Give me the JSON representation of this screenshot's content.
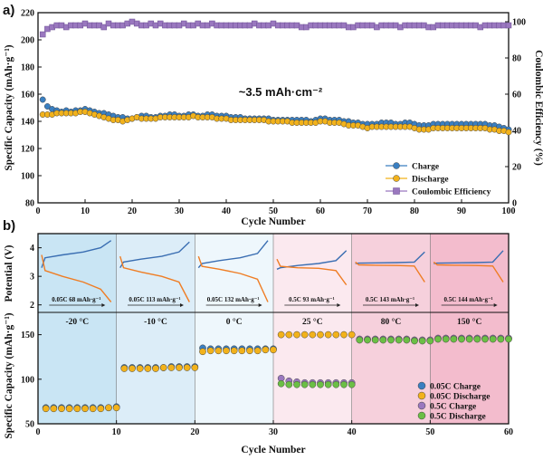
{
  "chart_data": [
    {
      "panel": "a)",
      "type": "scatter",
      "xlabel": "Cycle Number",
      "ylabel": "Specific Capacity (mAh·g⁻¹)",
      "y2label": "Coulombic Efficiency (%)",
      "annotation": "~3.5 mAh·cm⁻²",
      "xlim": [
        0,
        100
      ],
      "ylim": [
        80,
        220
      ],
      "y2lim": [
        0,
        105
      ],
      "xticks": [
        "0",
        "10",
        "20",
        "30",
        "40",
        "50",
        "60",
        "70",
        "80",
        "90",
        "100"
      ],
      "yticks": [
        "80",
        "100",
        "120",
        "140",
        "160",
        "180",
        "200",
        "220"
      ],
      "y2ticks": [
        "0",
        "20",
        "40",
        "60",
        "80",
        "100"
      ],
      "legend_position": "bottom-right",
      "grid": false,
      "series": [
        {
          "name": "Charge",
          "color": "#3a7fc1",
          "marker": "circle",
          "axis": "left",
          "x": [
            1,
            2,
            3,
            4,
            5,
            6,
            7,
            8,
            9,
            10,
            11,
            12,
            13,
            14,
            15,
            16,
            17,
            18,
            19,
            20,
            21,
            22,
            23,
            24,
            25,
            26,
            27,
            28,
            29,
            30,
            31,
            32,
            33,
            34,
            35,
            36,
            37,
            38,
            39,
            40,
            41,
            42,
            43,
            44,
            45,
            46,
            47,
            48,
            49,
            50,
            51,
            52,
            53,
            54,
            55,
            56,
            57,
            58,
            59,
            60,
            61,
            62,
            63,
            64,
            65,
            66,
            67,
            68,
            69,
            70,
            71,
            72,
            73,
            74,
            75,
            76,
            77,
            78,
            79,
            80,
            81,
            82,
            83,
            84,
            85,
            86,
            87,
            88,
            89,
            90,
            91,
            92,
            93,
            94,
            95,
            96,
            97,
            98,
            99,
            100
          ],
          "values": [
            156,
            151,
            149,
            148,
            147,
            148,
            147,
            148,
            148,
            149,
            148,
            147,
            146,
            146,
            145,
            144,
            143,
            143,
            142,
            142,
            143,
            144,
            144,
            143,
            143,
            144,
            144,
            145,
            145,
            144,
            144,
            145,
            145,
            144,
            144,
            145,
            145,
            144,
            144,
            144,
            143,
            143,
            143,
            142,
            142,
            142,
            142,
            142,
            142,
            141,
            141,
            141,
            141,
            141,
            141,
            141,
            141,
            140,
            141,
            142,
            142,
            141,
            141,
            141,
            140,
            140,
            139,
            139,
            138,
            138,
            138,
            138,
            139,
            139,
            139,
            138,
            138,
            139,
            139,
            138,
            137,
            137,
            137,
            138,
            138,
            138,
            138,
            138,
            138,
            138,
            138,
            138,
            138,
            138,
            138,
            137,
            137,
            136,
            135,
            134
          ]
        },
        {
          "name": "Discharge",
          "color": "#f2b21b",
          "marker": "circle",
          "axis": "left",
          "x": [
            1,
            2,
            3,
            4,
            5,
            6,
            7,
            8,
            9,
            10,
            11,
            12,
            13,
            14,
            15,
            16,
            17,
            18,
            19,
            20,
            21,
            22,
            23,
            24,
            25,
            26,
            27,
            28,
            29,
            30,
            31,
            32,
            33,
            34,
            35,
            36,
            37,
            38,
            39,
            40,
            41,
            42,
            43,
            44,
            45,
            46,
            47,
            48,
            49,
            50,
            51,
            52,
            53,
            54,
            55,
            56,
            57,
            58,
            59,
            60,
            61,
            62,
            63,
            64,
            65,
            66,
            67,
            68,
            69,
            70,
            71,
            72,
            73,
            74,
            75,
            76,
            77,
            78,
            79,
            80,
            81,
            82,
            83,
            84,
            85,
            86,
            87,
            88,
            89,
            90,
            91,
            92,
            93,
            94,
            95,
            96,
            97,
            98,
            99,
            100
          ],
          "values": [
            145,
            145,
            145,
            146,
            146,
            146,
            146,
            146,
            147,
            147,
            146,
            145,
            144,
            143,
            142,
            141,
            141,
            140,
            141,
            142,
            143,
            142,
            142,
            142,
            142,
            143,
            143,
            143,
            143,
            143,
            143,
            143,
            144,
            143,
            143,
            143,
            143,
            142,
            142,
            142,
            141,
            141,
            141,
            141,
            141,
            141,
            141,
            141,
            140,
            140,
            140,
            140,
            140,
            139,
            139,
            139,
            139,
            139,
            139,
            140,
            140,
            139,
            139,
            139,
            138,
            137,
            137,
            137,
            136,
            135,
            136,
            136,
            136,
            136,
            136,
            136,
            136,
            136,
            136,
            135,
            134,
            134,
            134,
            135,
            135,
            135,
            135,
            135,
            135,
            135,
            135,
            135,
            135,
            135,
            135,
            134,
            134,
            133,
            133,
            132
          ]
        },
        {
          "name": "Coulombic Efficiency",
          "color": "#9a78bf",
          "marker": "square",
          "axis": "right",
          "x": [
            1,
            2,
            3,
            4,
            5,
            6,
            7,
            8,
            9,
            10,
            11,
            12,
            13,
            14,
            15,
            16,
            17,
            18,
            19,
            20,
            21,
            22,
            23,
            24,
            25,
            26,
            27,
            28,
            29,
            30,
            31,
            32,
            33,
            34,
            35,
            36,
            37,
            38,
            39,
            40,
            41,
            42,
            43,
            44,
            45,
            46,
            47,
            48,
            49,
            50,
            51,
            52,
            53,
            54,
            55,
            56,
            57,
            58,
            59,
            60,
            61,
            62,
            63,
            64,
            65,
            66,
            67,
            68,
            69,
            70,
            71,
            72,
            73,
            74,
            75,
            76,
            77,
            78,
            79,
            80,
            81,
            82,
            83,
            84,
            85,
            86,
            87,
            88,
            89,
            90,
            91,
            92,
            93,
            94,
            95,
            96,
            97,
            98,
            99,
            100
          ],
          "values": [
            93,
            96,
            97,
            98,
            98,
            97,
            98,
            98,
            98,
            99,
            98,
            98,
            98,
            97,
            99,
            98,
            98,
            98,
            99,
            100,
            99,
            98,
            98,
            99,
            98,
            99,
            98,
            98,
            98,
            98,
            99,
            98,
            98,
            99,
            98,
            98,
            99,
            98,
            98,
            98,
            98,
            98,
            98,
            98,
            98,
            99,
            98,
            98,
            98,
            99,
            98,
            98,
            98,
            98,
            98,
            97,
            97,
            98,
            98,
            98,
            98,
            98,
            98,
            98,
            98,
            97,
            97,
            98,
            98,
            98,
            98,
            97,
            98,
            98,
            98,
            98,
            97,
            98,
            98,
            98,
            98,
            98,
            97,
            97,
            98,
            98,
            98,
            98,
            98,
            98,
            98,
            98,
            98,
            97,
            98,
            98,
            98,
            98,
            98,
            98
          ]
        }
      ]
    },
    {
      "panel": "b)",
      "type": "scatter",
      "xlabel": "Cycle Number",
      "ylabel": "Specific Capacity (mAh·g⁻¹)",
      "xlim": [
        0,
        60
      ],
      "ylim": [
        50,
        175
      ],
      "xticks": [
        "0",
        "10",
        "20",
        "30",
        "40",
        "50",
        "60"
      ],
      "yticks": [
        "50",
        "100",
        "150"
      ],
      "legend_position": "bottom-right",
      "grid": false,
      "temperatures": [
        "-20 °C",
        "-10 °C",
        "0 °C",
        "25 °C",
        "80 °C",
        "150 °C"
      ],
      "segment_colors": [
        "#c9e5f4",
        "#dcedf8",
        "#eef7fc",
        "#fbe9ef",
        "#f6d0dc",
        "#f3bccd"
      ],
      "series": [
        {
          "name": "0.05C Charge",
          "color": "#3a7fc1",
          "marker": "circle",
          "x": [
            1,
            2,
            3,
            4,
            5,
            6,
            7,
            8,
            9,
            10,
            11,
            12,
            13,
            14,
            15,
            16,
            17,
            18,
            19,
            20,
            21,
            22,
            23,
            24,
            25,
            26,
            27,
            28,
            29,
            30
          ],
          "values": [
            68,
            68,
            68,
            68,
            68,
            68,
            68,
            68,
            68,
            69,
            113,
            113,
            113,
            113,
            113,
            113,
            114,
            114,
            114,
            114,
            135,
            134,
            134,
            134,
            134,
            134,
            134,
            134,
            134,
            134
          ]
        },
        {
          "name": "0.05C Discharge",
          "color": "#f2b21b",
          "marker": "circle",
          "x": [
            1,
            2,
            3,
            4,
            5,
            6,
            7,
            8,
            9,
            10,
            11,
            12,
            13,
            14,
            15,
            16,
            17,
            18,
            19,
            20,
            21,
            22,
            23,
            24,
            25,
            26,
            27,
            28,
            29,
            30
          ],
          "values": [
            67,
            67,
            67,
            67,
            67,
            67,
            67,
            67,
            68,
            68,
            112,
            112,
            112,
            112,
            112,
            113,
            113,
            113,
            113,
            113,
            131,
            132,
            132,
            132,
            132,
            132,
            132,
            132,
            133,
            133
          ]
        },
        {
          "name": "0.5C Charge",
          "color": "#9a78bf",
          "marker": "circle",
          "x": [
            31,
            32,
            33,
            34,
            35,
            36,
            37,
            38,
            39,
            40,
            41,
            42,
            43,
            44,
            45,
            46,
            47,
            48,
            49,
            50,
            51,
            52,
            53,
            54,
            55,
            56,
            57,
            58,
            59,
            60
          ],
          "values": [
            101,
            98,
            97,
            96,
            96,
            96,
            96,
            96,
            96,
            96,
            145,
            145,
            145,
            145,
            145,
            145,
            145,
            144,
            144,
            144,
            146,
            146,
            146,
            146,
            146,
            146,
            146,
            146,
            146,
            146
          ]
        },
        {
          "name": "0.5C Discharge",
          "color": "#6bbf45",
          "marker": "circle",
          "x": [
            31,
            32,
            33,
            34,
            35,
            36,
            37,
            38,
            39,
            40,
            41,
            42,
            43,
            44,
            45,
            46,
            47,
            48,
            49,
            50,
            51,
            52,
            53,
            54,
            55,
            56,
            57,
            58,
            59,
            60
          ],
          "values": [
            95,
            94,
            94,
            94,
            94,
            94,
            94,
            94,
            94,
            94,
            144,
            144,
            144,
            144,
            144,
            144,
            144,
            143,
            143,
            143,
            145,
            145,
            145,
            145,
            145,
            145,
            145,
            145,
            145,
            145
          ]
        },
        {
          "name": "0.05C/0.5C Charge (upper, 0.5C at 25 °C)",
          "legend": false,
          "color": "#f2b21b",
          "marker": "circle",
          "x": [
            31,
            32,
            33,
            34,
            35,
            36,
            37,
            38,
            39,
            40
          ],
          "values": [
            150,
            150,
            150,
            150,
            150,
            150,
            150,
            150,
            150,
            150
          ]
        }
      ],
      "inset": {
        "ylabel": "Potential (V)",
        "yticks": [
          "2",
          "3",
          "4"
        ],
        "ylim": [
          1.8,
          4.4
        ],
        "curve_labels": [
          "0.05C 68 mAh·g⁻¹",
          "0.05C 113 mAh·g⁻¹",
          "0.05C 132 mAh·g⁻¹",
          "0.5C 93 mAh·g⁻¹",
          "0.5C 143 mAh·g⁻¹",
          "0.5C 144 mAh·g⁻¹"
        ],
        "charge_color": "#3a6eb2",
        "discharge_color": "#ef7d24"
      }
    }
  ]
}
